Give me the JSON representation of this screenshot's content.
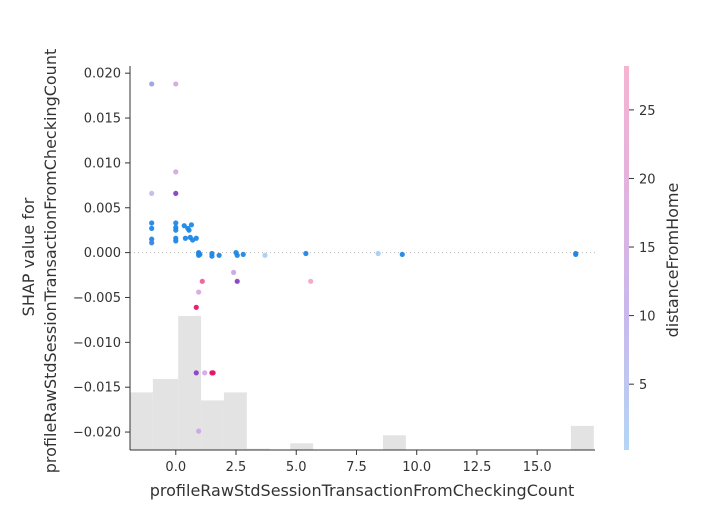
{
  "chart_data": {
    "type": "scatter",
    "xlabel": "profileRawStdSessionTransactionFromCheckingCount",
    "ylabel_lines": [
      "SHAP value for",
      "profileRawStdSessionTransactionFromCheckingCount"
    ],
    "colorbar_label": "distanceFromHome",
    "xlim": [
      -1.9,
      17.4
    ],
    "ylim": [
      -0.022,
      0.0208
    ],
    "xticks": [
      0.0,
      2.5,
      5.0,
      7.5,
      10.0,
      12.5,
      15.0
    ],
    "xtick_labels": [
      "0.0",
      "2.5",
      "5.0",
      "7.5",
      "10.0",
      "12.5",
      "15.0"
    ],
    "yticks": [
      0.02,
      0.015,
      0.01,
      0.005,
      0.0,
      -0.005,
      -0.01,
      -0.015,
      -0.02
    ],
    "ytick_labels": [
      "0.020",
      "0.015",
      "0.010",
      "0.005",
      "0.000",
      "−0.005",
      "−0.010",
      "−0.015",
      "−0.020"
    ],
    "colorbar_range": [
      0.2,
      28.2
    ],
    "colorbar_ticks": [
      5,
      10,
      15,
      20,
      25
    ],
    "colormap": [
      "#b3d6f5",
      "#c9b8ec",
      "#e3b2de",
      "#f6b4d0"
    ],
    "zero_line": true,
    "histogram": [
      {
        "x0": -1.9,
        "x1": -0.95,
        "h": 0.43
      },
      {
        "x0": -0.95,
        "x1": 0.1,
        "h": 0.53
      },
      {
        "x0": 0.1,
        "x1": 1.05,
        "h": 1.0
      },
      {
        "x0": 1.05,
        "x1": 2.0,
        "h": 0.37
      },
      {
        "x0": 2.0,
        "x1": 2.95,
        "h": 0.43
      },
      {
        "x0": 2.95,
        "x1": 3.9,
        "h": 0.01
      },
      {
        "x0": 4.75,
        "x1": 5.7,
        "h": 0.05
      },
      {
        "x0": 8.6,
        "x1": 9.55,
        "h": 0.11
      },
      {
        "x0": 16.4,
        "x1": 17.35,
        "h": 0.18
      }
    ],
    "points": [
      {
        "x": -1.0,
        "y": 0.0188,
        "c": 7
      },
      {
        "x": 0.0,
        "y": 0.0188,
        "c": 15
      },
      {
        "x": 0.0,
        "y": 0.009,
        "c": 16
      },
      {
        "x": -1.0,
        "y": 0.0066,
        "c": 10
      },
      {
        "x": 0.0,
        "y": 0.0066,
        "c": 19
      },
      {
        "x": -1.0,
        "y": 0.0033,
        "c": 1
      },
      {
        "x": -1.0,
        "y": 0.0027,
        "c": 1
      },
      {
        "x": -1.0,
        "y": 0.0015,
        "c": 1
      },
      {
        "x": -1.0,
        "y": 0.0011,
        "c": 2
      },
      {
        "x": 0.0,
        "y": 0.0033,
        "c": 1
      },
      {
        "x": 0.0,
        "y": 0.0028,
        "c": 1
      },
      {
        "x": 0.0,
        "y": 0.0025,
        "c": 1
      },
      {
        "x": 0.0,
        "y": 0.0016,
        "c": 1
      },
      {
        "x": 0.0,
        "y": 0.0013,
        "c": 1
      },
      {
        "x": 0.35,
        "y": 0.003,
        "c": 1
      },
      {
        "x": 0.4,
        "y": 0.0016,
        "c": 1
      },
      {
        "x": 0.5,
        "y": 0.0027,
        "c": 1
      },
      {
        "x": 0.55,
        "y": 0.0025,
        "c": 1
      },
      {
        "x": 0.6,
        "y": 0.0017,
        "c": 1
      },
      {
        "x": 0.65,
        "y": 0.0031,
        "c": 1
      },
      {
        "x": 0.7,
        "y": 0.0014,
        "c": 1
      },
      {
        "x": 0.85,
        "y": 0.0016,
        "c": 1
      },
      {
        "x": 0.95,
        "y": 0.0,
        "c": 1
      },
      {
        "x": 0.95,
        "y": -0.0003,
        "c": 1
      },
      {
        "x": 0.95,
        "y": -0.0001,
        "c": 1
      },
      {
        "x": 1.0,
        "y": -0.0002,
        "c": 1
      },
      {
        "x": 1.5,
        "y": -0.0001,
        "c": 1
      },
      {
        "x": 1.5,
        "y": -0.0004,
        "c": 1
      },
      {
        "x": 1.8,
        "y": -0.0003,
        "c": 1
      },
      {
        "x": 2.5,
        "y": 0.0,
        "c": 1
      },
      {
        "x": 2.55,
        "y": -0.0003,
        "c": 1
      },
      {
        "x": 2.8,
        "y": -0.0002,
        "c": 1
      },
      {
        "x": 3.7,
        "y": -0.0003,
        "c": 3
      },
      {
        "x": 5.4,
        "y": -0.0001,
        "c": 1
      },
      {
        "x": 8.4,
        "y": -0.0001,
        "c": 3
      },
      {
        "x": 9.4,
        "y": -0.0002,
        "c": 1
      },
      {
        "x": 16.6,
        "y": -0.0001,
        "c": 1
      },
      {
        "x": 16.6,
        "y": -0.0002,
        "c": 1
      },
      {
        "x": 1.1,
        "y": -0.0032,
        "c": 26
      },
      {
        "x": 0.95,
        "y": -0.0044,
        "c": 15
      },
      {
        "x": 2.4,
        "y": -0.0022,
        "c": 12
      },
      {
        "x": 2.55,
        "y": -0.0032,
        "c": 20
      },
      {
        "x": 5.6,
        "y": -0.0032,
        "c": 25
      },
      {
        "x": 0.85,
        "y": -0.0061,
        "c": 27
      },
      {
        "x": 0.85,
        "y": -0.0134,
        "c": 18
      },
      {
        "x": 1.2,
        "y": -0.0134,
        "c": 16
      },
      {
        "x": 1.5,
        "y": -0.0134,
        "c": 27
      },
      {
        "x": 1.55,
        "y": -0.0134,
        "c": 28
      },
      {
        "x": 0.95,
        "y": -0.0199,
        "c": 13
      }
    ]
  }
}
